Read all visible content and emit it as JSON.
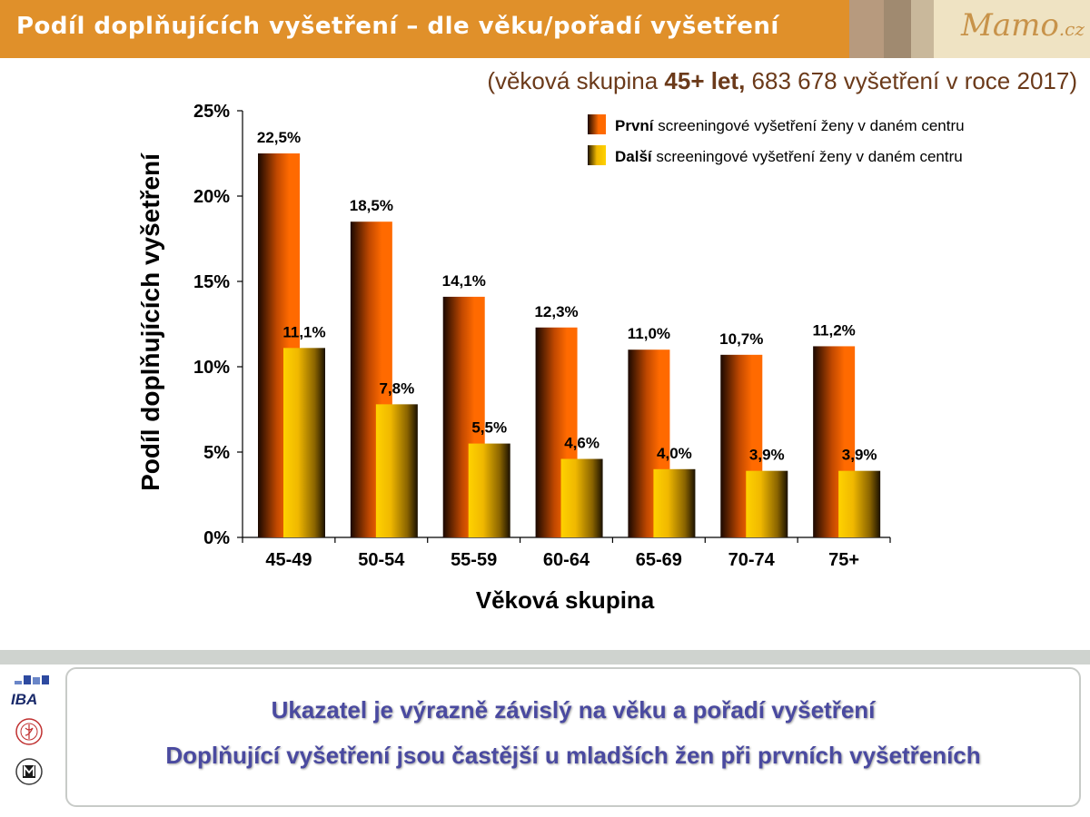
{
  "header": {
    "title": "Podíl doplňujících vyšetření – dle věku/pořadí vyšetření",
    "logo_main": "Mamo",
    "logo_suffix": ".cz",
    "colors": {
      "bar": "#e0902a",
      "logo_bg": "#efe3c3",
      "logo_text": "#c8934a"
    }
  },
  "subtitle": {
    "prefix": "(věková skupina ",
    "bold": "45+ let,",
    "suffix": " 683 678 vyšetření v roce 2017)"
  },
  "chart_data": {
    "type": "bar",
    "categories": [
      "45-49",
      "50-54",
      "55-59",
      "60-64",
      "65-69",
      "70-74",
      "75+"
    ],
    "series": [
      {
        "name_bold": "První",
        "name_rest": " screeningové vyšetření ženy v daném centru",
        "values": [
          22.5,
          18.5,
          14.1,
          12.3,
          11.0,
          10.7,
          11.2
        ],
        "labels": [
          "22,5%",
          "18,5%",
          "14,1%",
          "12,3%",
          "11,0%",
          "10,7%",
          "11,2%"
        ],
        "color": "#ff6600"
      },
      {
        "name_bold": "Další",
        "name_rest": " screeningové vyšetření ženy v daném centru",
        "values": [
          11.1,
          7.8,
          5.5,
          4.6,
          4.0,
          3.9,
          3.9
        ],
        "labels": [
          "11,1%",
          "7,8%",
          "5,5%",
          "4,6%",
          "4,0%",
          "3,9%",
          "3,9%"
        ],
        "color": "#ffcc00"
      }
    ],
    "yticks": [
      "0%",
      "5%",
      "10%",
      "15%",
      "20%",
      "25%"
    ],
    "ylim": [
      0,
      25
    ],
    "xlabel": "Věková skupina",
    "ylabel": "Podíl doplňujících vyšetření",
    "legend_position": "top-right",
    "grid": false
  },
  "conclusion": {
    "line1": "Ukazatel je výrazně závislý na věku a pořadí vyšetření",
    "line2": "Doplňující vyšetření jsou častější u mladších žen při prvních vyšetřeních",
    "color": "#4a4aa0"
  },
  "side_logos": {
    "iba_text": "IBA"
  }
}
